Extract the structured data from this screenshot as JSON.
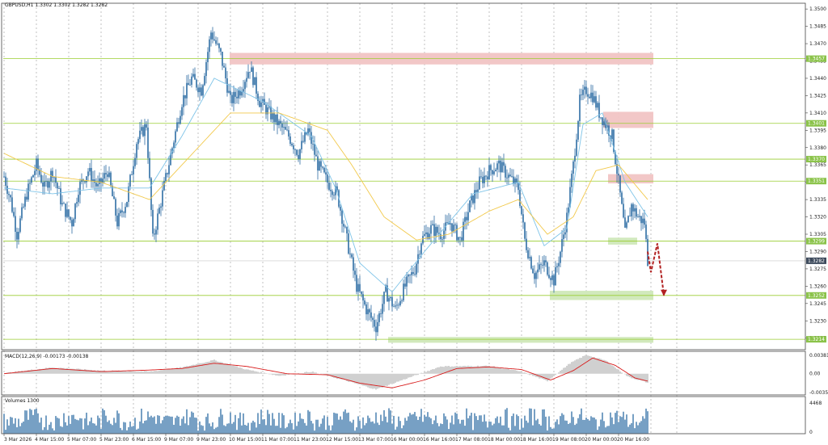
{
  "main_panel": {
    "title": "GBPUSD,H1  1.3302 1.3302 1.3282 1.3282"
  },
  "macd_panel": {
    "title": "MACD(12,26,9) -0.00173 -0.00138",
    "tick_labels": [
      "0.00381",
      "0.00",
      "-0.00358"
    ]
  },
  "volume_panel": {
    "title": "Volumes 1300",
    "tick_labels": [
      "4468",
      "0"
    ]
  },
  "colors": {
    "candles": "#2e6da4",
    "fast_ma": "#7fc4e8",
    "slow_ma": "#f2c94c",
    "level_line": "#9acd32",
    "resistance_zone": "#f1c4c4",
    "support_zone": "#cfe8b8",
    "macd_hist": "#a9a9a9",
    "macd_signal": "#d81b1b",
    "volume": "#2e6da4",
    "forecast_arrow": "#b22222",
    "price_tag_green": "#8bc34a",
    "price_tag_dark": "#3d4a5c"
  },
  "chart_data": [
    {
      "type": "candlestick",
      "title": "GBPUSD,H1  1.3302 1.3302 1.3282 1.3282",
      "symbol": "GBPUSD",
      "timeframe": "H1",
      "ohlc_last": {
        "open": 1.3302,
        "high": 1.3302,
        "low": 1.3282,
        "close": 1.3282
      },
      "ylim": [
        1.3205,
        1.3505
      ],
      "y_ticks": [
        1.3215,
        1.323,
        1.3245,
        1.326,
        1.3275,
        1.329,
        1.3305,
        1.332,
        1.3335,
        1.335,
        1.3365,
        1.338,
        1.3395,
        1.341,
        1.3425,
        1.344,
        1.3455,
        1.347,
        1.3485,
        1.35
      ],
      "y_tick_labels": [
        "1.3215",
        "1.3230",
        "1.3245",
        "1.3260",
        "1.3275",
        "1.3290",
        "1.3305",
        "1.3320",
        "1.3335",
        "1.3350",
        "1.3365",
        "1.3380",
        "1.3395",
        "1.3410",
        "1.3425",
        "1.3440",
        "1.3455",
        "1.3470",
        "1.3485",
        "1.3500"
      ],
      "x_tick_labels": [
        "3 Mar 2026",
        "4 Mar 15:00",
        "5 Mar 07:00",
        "5 Mar 23:00",
        "6 Mar 15:00",
        "9 Mar 07:00",
        "9 Mar 23:00",
        "10 Mar 15:00",
        "11 Mar 07:00",
        "11 Mar 23:00",
        "12 Mar 15:00",
        "13 Mar 07:00",
        "16 Mar 00:00",
        "16 Mar 16:00",
        "17 Mar 08:00",
        "18 Mar 00:00",
        "18 Mar 16:00",
        "19 Mar 08:00",
        "20 Mar 00:00",
        "20 Mar 16:00"
      ],
      "close_path": [
        {
          "x": 0,
          "y": 1.3355
        },
        {
          "x": 4,
          "y": 1.3335
        },
        {
          "x": 8,
          "y": 1.3305
        },
        {
          "x": 14,
          "y": 1.334
        },
        {
          "x": 20,
          "y": 1.3365
        },
        {
          "x": 25,
          "y": 1.3345
        },
        {
          "x": 30,
          "y": 1.336
        },
        {
          "x": 36,
          "y": 1.333
        },
        {
          "x": 42,
          "y": 1.3315
        },
        {
          "x": 46,
          "y": 1.3345
        },
        {
          "x": 52,
          "y": 1.336
        },
        {
          "x": 58,
          "y": 1.3345
        },
        {
          "x": 64,
          "y": 1.336
        },
        {
          "x": 70,
          "y": 1.3315
        },
        {
          "x": 76,
          "y": 1.3335
        },
        {
          "x": 82,
          "y": 1.3385
        },
        {
          "x": 88,
          "y": 1.34
        },
        {
          "x": 92,
          "y": 1.33
        },
        {
          "x": 98,
          "y": 1.334
        },
        {
          "x": 104,
          "y": 1.338
        },
        {
          "x": 110,
          "y": 1.342
        },
        {
          "x": 116,
          "y": 1.344
        },
        {
          "x": 122,
          "y": 1.343
        },
        {
          "x": 128,
          "y": 1.348
        },
        {
          "x": 134,
          "y": 1.346
        },
        {
          "x": 140,
          "y": 1.342
        },
        {
          "x": 146,
          "y": 1.343
        },
        {
          "x": 152,
          "y": 1.345
        },
        {
          "x": 158,
          "y": 1.342
        },
        {
          "x": 164,
          "y": 1.341
        },
        {
          "x": 170,
          "y": 1.34
        },
        {
          "x": 176,
          "y": 1.339
        },
        {
          "x": 182,
          "y": 1.3375
        },
        {
          "x": 188,
          "y": 1.3395
        },
        {
          "x": 194,
          "y": 1.3365
        },
        {
          "x": 200,
          "y": 1.335
        },
        {
          "x": 206,
          "y": 1.334
        },
        {
          "x": 212,
          "y": 1.33
        },
        {
          "x": 218,
          "y": 1.326
        },
        {
          "x": 224,
          "y": 1.324
        },
        {
          "x": 230,
          "y": 1.3225
        },
        {
          "x": 236,
          "y": 1.3255
        },
        {
          "x": 242,
          "y": 1.324
        },
        {
          "x": 248,
          "y": 1.326
        },
        {
          "x": 254,
          "y": 1.3275
        },
        {
          "x": 258,
          "y": 1.33
        },
        {
          "x": 264,
          "y": 1.331
        },
        {
          "x": 270,
          "y": 1.3305
        },
        {
          "x": 276,
          "y": 1.3315
        },
        {
          "x": 282,
          "y": 1.33
        },
        {
          "x": 288,
          "y": 1.333
        },
        {
          "x": 294,
          "y": 1.335
        },
        {
          "x": 300,
          "y": 1.336
        },
        {
          "x": 306,
          "y": 1.3365
        },
        {
          "x": 312,
          "y": 1.3355
        },
        {
          "x": 318,
          "y": 1.3345
        },
        {
          "x": 322,
          "y": 1.33
        },
        {
          "x": 328,
          "y": 1.327
        },
        {
          "x": 334,
          "y": 1.328
        },
        {
          "x": 340,
          "y": 1.3265
        },
        {
          "x": 344,
          "y": 1.329
        },
        {
          "x": 348,
          "y": 1.332
        },
        {
          "x": 352,
          "y": 1.3365
        },
        {
          "x": 356,
          "y": 1.342
        },
        {
          "x": 360,
          "y": 1.343
        },
        {
          "x": 364,
          "y": 1.3425
        },
        {
          "x": 368,
          "y": 1.341
        },
        {
          "x": 372,
          "y": 1.34
        },
        {
          "x": 376,
          "y": 1.339
        },
        {
          "x": 380,
          "y": 1.335
        },
        {
          "x": 384,
          "y": 1.3305
        },
        {
          "x": 388,
          "y": 1.333
        },
        {
          "x": 392,
          "y": 1.332
        },
        {
          "x": 396,
          "y": 1.3315
        },
        {
          "x": 398,
          "y": 1.3282
        }
      ],
      "moving_averages": [
        {
          "name": "",
          "color": "#7fc4e8",
          "values": [
            {
              "x": 0,
              "y": 1.3345
            },
            {
              "x": 30,
              "y": 1.334
            },
            {
              "x": 60,
              "y": 1.3345
            },
            {
              "x": 90,
              "y": 1.3345
            },
            {
              "x": 110,
              "y": 1.339
            },
            {
              "x": 130,
              "y": 1.344
            },
            {
              "x": 160,
              "y": 1.342
            },
            {
              "x": 190,
              "y": 1.339
            },
            {
              "x": 205,
              "y": 1.3345
            },
            {
              "x": 220,
              "y": 1.328
            },
            {
              "x": 240,
              "y": 1.3255
            },
            {
              "x": 260,
              "y": 1.329
            },
            {
              "x": 290,
              "y": 1.334
            },
            {
              "x": 318,
              "y": 1.335
            },
            {
              "x": 334,
              "y": 1.3295
            },
            {
              "x": 348,
              "y": 1.331
            },
            {
              "x": 358,
              "y": 1.34
            },
            {
              "x": 370,
              "y": 1.341
            },
            {
              "x": 384,
              "y": 1.335
            },
            {
              "x": 398,
              "y": 1.332
            }
          ]
        },
        {
          "name": "",
          "color": "#f2c94c",
          "values": [
            {
              "x": 0,
              "y": 1.3375
            },
            {
              "x": 30,
              "y": 1.3355
            },
            {
              "x": 60,
              "y": 1.335
            },
            {
              "x": 90,
              "y": 1.3335
            },
            {
              "x": 110,
              "y": 1.3365
            },
            {
              "x": 140,
              "y": 1.341
            },
            {
              "x": 170,
              "y": 1.341
            },
            {
              "x": 200,
              "y": 1.3395
            },
            {
              "x": 215,
              "y": 1.3365
            },
            {
              "x": 235,
              "y": 1.332
            },
            {
              "x": 255,
              "y": 1.33
            },
            {
              "x": 275,
              "y": 1.3305
            },
            {
              "x": 300,
              "y": 1.3325
            },
            {
              "x": 318,
              "y": 1.3335
            },
            {
              "x": 336,
              "y": 1.3305
            },
            {
              "x": 352,
              "y": 1.332
            },
            {
              "x": 366,
              "y": 1.336
            },
            {
              "x": 380,
              "y": 1.3365
            },
            {
              "x": 398,
              "y": 1.3335
            }
          ]
        }
      ],
      "horizontal_levels": [
        {
          "price": 1.3457,
          "label": "1.3457"
        },
        {
          "price": 1.3401,
          "label": "1.3401"
        },
        {
          "price": 1.337,
          "label": "1.3370"
        },
        {
          "price": 1.3351,
          "label": "1.3351"
        },
        {
          "price": 1.3299,
          "label": "1.3299"
        },
        {
          "price": 1.3252,
          "label": "1.3252"
        },
        {
          "price": 1.3214,
          "label": "1.3214"
        }
      ],
      "current_price": {
        "price": 1.3282,
        "label": "1.3282"
      },
      "zones": [
        {
          "kind": "resistance",
          "x_start": 140,
          "x_end": 402,
          "y_low": 1.3452,
          "y_high": 1.3462
        },
        {
          "kind": "resistance",
          "x_start": 371,
          "x_end": 402,
          "y_low": 1.3397,
          "y_high": 1.3411
        },
        {
          "kind": "resistance",
          "x_start": 374,
          "x_end": 402,
          "y_low": 1.3349,
          "y_high": 1.3357
        },
        {
          "kind": "support",
          "x_start": 374,
          "x_end": 392,
          "y_low": 1.3296,
          "y_high": 1.3302
        },
        {
          "kind": "support",
          "x_start": 338,
          "x_end": 402,
          "y_low": 1.3248,
          "y_high": 1.3256
        },
        {
          "kind": "support",
          "x_start": 238,
          "x_end": 402,
          "y_low": 1.3211,
          "y_high": 1.3216
        }
      ],
      "forecast_arrow": [
        {
          "x": 398,
          "y": 1.329
        },
        {
          "x": 400,
          "y": 1.3272
        },
        {
          "x": 404,
          "y": 1.3297
        },
        {
          "x": 408,
          "y": 1.3252
        }
      ]
    },
    {
      "type": "macd",
      "title": "MACD(12,26,9) -0.00173 -0.00138",
      "params": [
        12,
        26,
        9
      ],
      "main": -0.00173,
      "signal": -0.00138,
      "ylim": [
        -0.00358,
        0.00381
      ],
      "y_tick_labels": [
        "0.00381",
        "0.00",
        "-0.00358"
      ],
      "histogram_path": [
        {
          "x": 0,
          "y": 0.0001
        },
        {
          "x": 30,
          "y": 0.0012
        },
        {
          "x": 60,
          "y": 0.0006
        },
        {
          "x": 90,
          "y": 0.0004
        },
        {
          "x": 110,
          "y": 0.0012
        },
        {
          "x": 130,
          "y": 0.0026
        },
        {
          "x": 150,
          "y": 0.0008
        },
        {
          "x": 170,
          "y": -0.0004
        },
        {
          "x": 190,
          "y": 0.0004
        },
        {
          "x": 210,
          "y": -0.0012
        },
        {
          "x": 230,
          "y": -0.003
        },
        {
          "x": 250,
          "y": -0.0008
        },
        {
          "x": 270,
          "y": 0.0014
        },
        {
          "x": 300,
          "y": 0.0015
        },
        {
          "x": 320,
          "y": 0.0004
        },
        {
          "x": 336,
          "y": -0.0014
        },
        {
          "x": 350,
          "y": 0.002
        },
        {
          "x": 360,
          "y": 0.0036
        },
        {
          "x": 372,
          "y": 0.0025
        },
        {
          "x": 386,
          "y": -0.0006
        },
        {
          "x": 398,
          "y": -0.0017
        }
      ],
      "signal_path": [
        {
          "x": 0,
          "y": 0.0
        },
        {
          "x": 30,
          "y": 0.001
        },
        {
          "x": 60,
          "y": 0.0004
        },
        {
          "x": 90,
          "y": 0.0007
        },
        {
          "x": 110,
          "y": 0.001
        },
        {
          "x": 130,
          "y": 0.002
        },
        {
          "x": 150,
          "y": 0.0014
        },
        {
          "x": 175,
          "y": 0.0
        },
        {
          "x": 200,
          "y": -0.0002
        },
        {
          "x": 220,
          "y": -0.0018
        },
        {
          "x": 240,
          "y": -0.0027
        },
        {
          "x": 260,
          "y": -0.0012
        },
        {
          "x": 280,
          "y": 0.001
        },
        {
          "x": 300,
          "y": 0.0013
        },
        {
          "x": 320,
          "y": 0.0008
        },
        {
          "x": 338,
          "y": -0.0012
        },
        {
          "x": 352,
          "y": 0.0006
        },
        {
          "x": 364,
          "y": 0.003
        },
        {
          "x": 378,
          "y": 0.0016
        },
        {
          "x": 390,
          "y": -0.0008
        },
        {
          "x": 398,
          "y": -0.0014
        }
      ]
    },
    {
      "type": "bar",
      "title": "Volumes 1300",
      "last_value": 1300,
      "ylim": [
        0,
        4468
      ],
      "y_tick_labels": [
        "4468",
        "0"
      ]
    }
  ]
}
